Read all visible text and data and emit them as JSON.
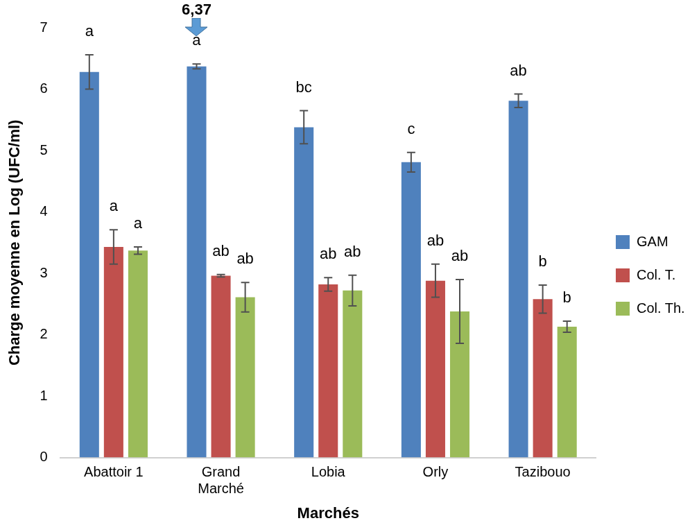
{
  "chart_data": {
    "type": "bar",
    "xlabel": "Marchés",
    "ylabel": "Charge moyenne en Log (UFC/ml)",
    "categories": [
      "Abattoir 1",
      "Grand Marché",
      "Lobia",
      "Orly",
      "Tazibouo"
    ],
    "series": [
      {
        "name": "GAM",
        "color": "#4f81bd",
        "values": [
          6.28,
          6.37,
          5.38,
          4.81,
          5.81
        ],
        "errors": [
          0.28,
          0.04,
          0.27,
          0.16,
          0.11
        ],
        "value_labels": [
          "a",
          "a",
          "bc",
          "c",
          "ab"
        ]
      },
      {
        "name": "Col. T.",
        "color": "#c0504d",
        "values": [
          3.43,
          2.96,
          2.82,
          2.88,
          2.58
        ],
        "errors": [
          0.28,
          0.02,
          0.11,
          0.27,
          0.23
        ],
        "value_labels": [
          "a",
          "ab",
          "ab",
          "ab",
          "b"
        ]
      },
      {
        "name": "Col. Th.",
        "color": "#9bbb59",
        "values": [
          3.37,
          2.61,
          2.72,
          2.38,
          2.13
        ],
        "errors": [
          0.06,
          0.24,
          0.25,
          0.52,
          0.09
        ],
        "value_labels": [
          "a",
          "ab",
          "ab",
          "ab",
          "b"
        ]
      }
    ],
    "ylim": [
      0,
      7
    ],
    "yticks": [
      0,
      1,
      2,
      3,
      4,
      5,
      6,
      7
    ],
    "grid": false,
    "legend": "right",
    "annotations": [
      "6,37"
    ]
  }
}
